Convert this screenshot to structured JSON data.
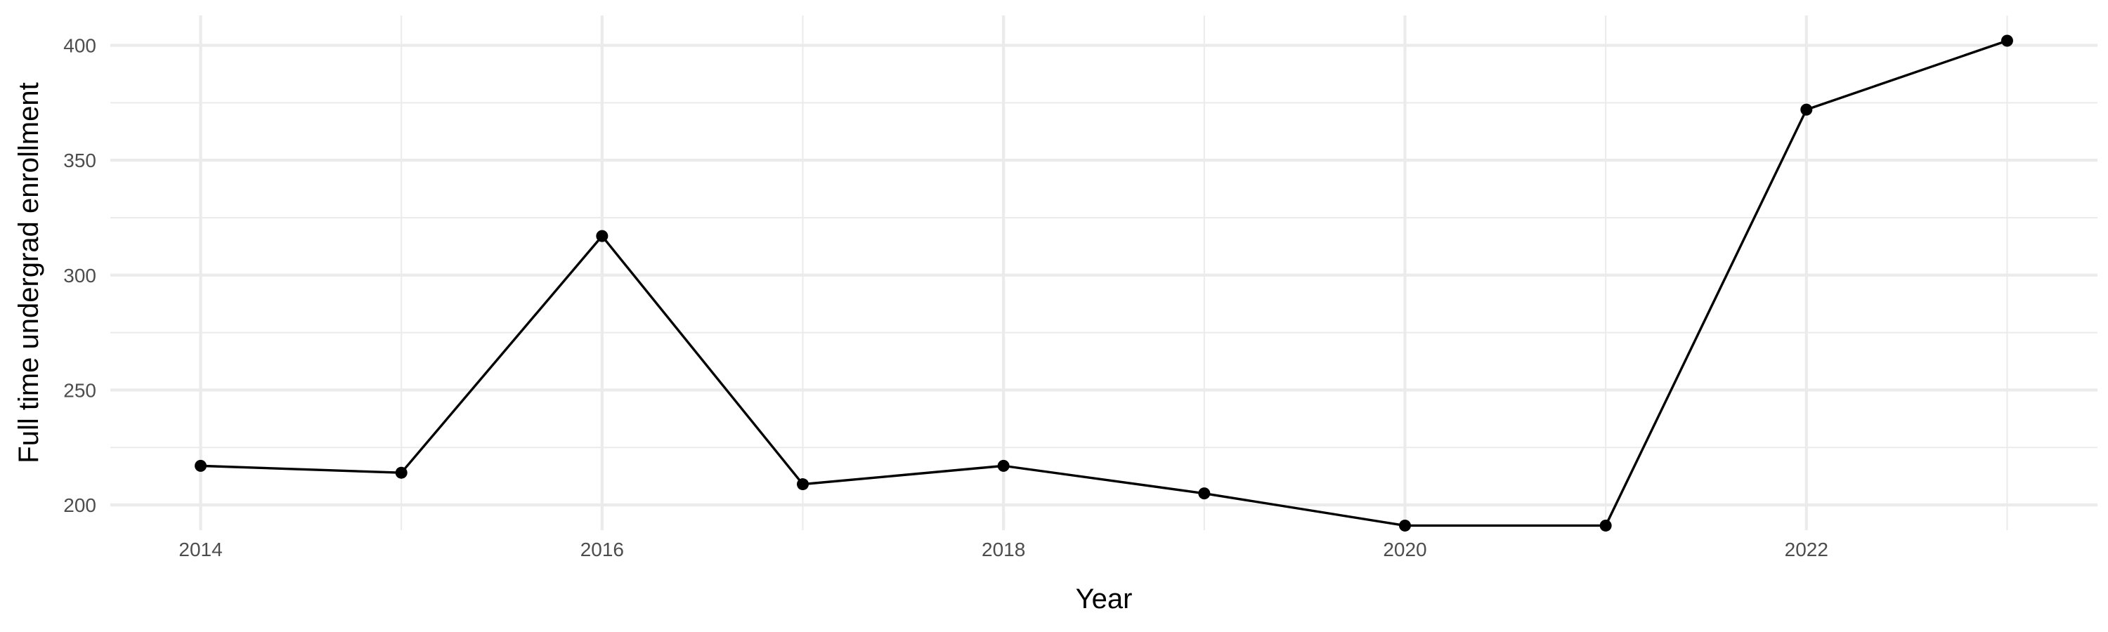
{
  "chart_data": {
    "type": "line",
    "title": "",
    "xlabel": "Year",
    "ylabel": "Full time undergrad enrollment",
    "x": [
      2014,
      2015,
      2016,
      2017,
      2018,
      2019,
      2020,
      2021,
      2022,
      2023
    ],
    "series": [
      {
        "values": [
          217,
          214,
          317,
          209,
          217,
          205,
          191,
          191,
          372,
          402
        ]
      }
    ],
    "xlim": [
      2013.55,
      2023.45
    ],
    "ylim": [
      189,
      413
    ],
    "x_ticks": [
      2014,
      2016,
      2018,
      2020,
      2022
    ],
    "x_minor_ticks": [
      2015,
      2017,
      2019,
      2021,
      2023
    ],
    "y_ticks": [
      200,
      250,
      300,
      350,
      400
    ],
    "y_minor_ticks": [
      225,
      275,
      325,
      375
    ],
    "x_tick_labels": [
      "2014",
      "2016",
      "2018",
      "2020",
      "2022"
    ],
    "y_tick_labels": [
      "200",
      "250",
      "300",
      "350",
      "400"
    ],
    "grid": true,
    "legend": false,
    "colors": {
      "line": "#000000",
      "grid": "#ebebeb",
      "tick_text": "#4d4d4d",
      "background": "#ffffff"
    }
  }
}
